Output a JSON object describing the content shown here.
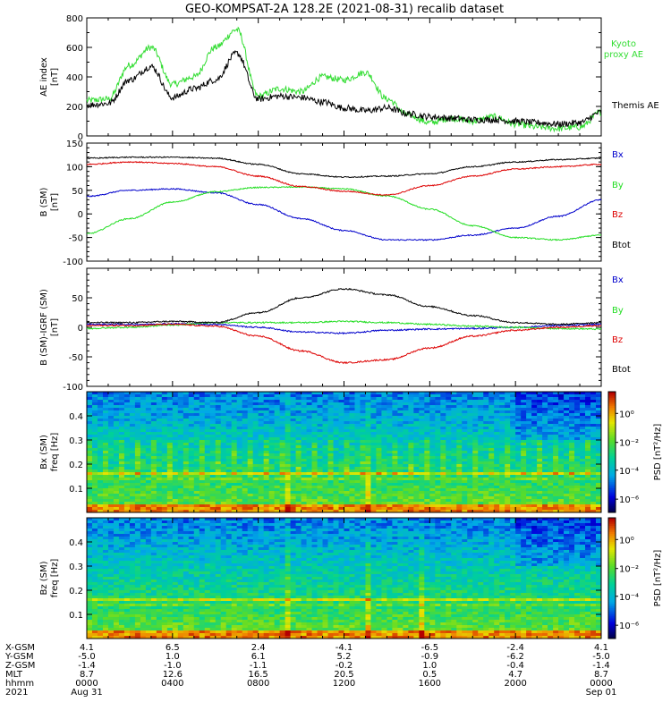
{
  "title": "GEO-KOMPSAT-2A 128.2E (2021-08-31) recalib dataset",
  "colors": {
    "black": "#000000",
    "blue": "#0000cc",
    "green": "#22dd22",
    "red": "#dd0000",
    "kyoto": "#33dd33"
  },
  "chart_data": [
    {
      "type": "line",
      "ylabel": "AE index [nT]",
      "ylim": [
        0,
        800
      ],
      "yticks": [
        "800",
        "600",
        "400",
        "200",
        "0"
      ],
      "legend": [
        {
          "name": "Kyoto proxy AE",
          "color": "#33dd33"
        },
        {
          "name": "Themis AE",
          "color": "#000000"
        }
      ],
      "x_hours": [
        0,
        1,
        2,
        3,
        4,
        5,
        6,
        7,
        8,
        9,
        10,
        11,
        12,
        13,
        14,
        15,
        16,
        17,
        18,
        19,
        20,
        21,
        22,
        23,
        24
      ],
      "series": [
        {
          "name": "Kyoto proxy AE",
          "values": [
            240,
            250,
            480,
            600,
            350,
            400,
            600,
            720,
            270,
            320,
            300,
            400,
            380,
            430,
            250,
            140,
            90,
            120,
            100,
            130,
            80,
            60,
            50,
            60,
            160
          ]
        },
        {
          "name": "Themis AE",
          "values": [
            210,
            220,
            380,
            470,
            260,
            320,
            380,
            560,
            250,
            270,
            260,
            230,
            190,
            170,
            190,
            150,
            130,
            120,
            110,
            110,
            100,
            90,
            80,
            90,
            160
          ]
        }
      ]
    },
    {
      "type": "line",
      "ylabel": "B (SM) [nT]",
      "ylim": [
        -100,
        150
      ],
      "yticks": [
        "150",
        "100",
        "50",
        "0",
        "-50",
        "-100"
      ],
      "legend": [
        {
          "name": "Bx",
          "color": "#0000cc"
        },
        {
          "name": "By",
          "color": "#22dd22"
        },
        {
          "name": "Bz",
          "color": "#dd0000"
        },
        {
          "name": "Btot",
          "color": "#000000"
        }
      ],
      "x_hours": [
        0,
        2,
        4,
        6,
        8,
        10,
        12,
        14,
        16,
        18,
        20,
        22,
        24
      ],
      "series": [
        {
          "name": "Bx",
          "values": [
            37,
            50,
            53,
            45,
            20,
            -10,
            -35,
            -55,
            -55,
            -45,
            -30,
            -5,
            30
          ]
        },
        {
          "name": "By",
          "values": [
            -42,
            -10,
            25,
            47,
            56,
            57,
            53,
            38,
            10,
            -25,
            -50,
            -55,
            -45
          ]
        },
        {
          "name": "Bz",
          "values": [
            105,
            110,
            107,
            100,
            80,
            58,
            48,
            40,
            60,
            80,
            95,
            100,
            105
          ]
        },
        {
          "name": "Btot",
          "values": [
            118,
            120,
            120,
            118,
            105,
            85,
            78,
            80,
            85,
            100,
            110,
            115,
            118
          ]
        }
      ]
    },
    {
      "type": "line",
      "ylabel": "B (SM)-IGRF (SM) [nT]",
      "ylim": [
        -100,
        100
      ],
      "yticks": [
        "50",
        "0",
        "-50",
        "-100"
      ],
      "legend": [
        {
          "name": "Bx",
          "color": "#0000cc"
        },
        {
          "name": "By",
          "color": "#22dd22"
        },
        {
          "name": "Bz",
          "color": "#dd0000"
        },
        {
          "name": "Btot",
          "color": "#000000"
        }
      ],
      "x_hours": [
        0,
        2,
        4,
        6,
        8,
        10,
        12,
        14,
        16,
        18,
        20,
        22,
        24
      ],
      "series": [
        {
          "name": "Bx",
          "values": [
            5,
            5,
            6,
            5,
            0,
            -8,
            -10,
            -5,
            -3,
            -2,
            0,
            3,
            5
          ]
        },
        {
          "name": "By",
          "values": [
            -2,
            0,
            4,
            8,
            8,
            8,
            10,
            8,
            5,
            2,
            0,
            -2,
            -3
          ]
        },
        {
          "name": "Bz",
          "values": [
            3,
            3,
            5,
            2,
            -15,
            -40,
            -60,
            -55,
            -35,
            -15,
            -5,
            0,
            3
          ]
        },
        {
          "name": "Btot",
          "values": [
            8,
            8,
            10,
            8,
            25,
            50,
            65,
            55,
            35,
            20,
            8,
            5,
            8
          ]
        }
      ]
    },
    {
      "type": "heatmap",
      "ylabel": "Bx (SM) freq [Hz]",
      "ylim": [
        0,
        0.5
      ],
      "yticks": [
        "0.4",
        "0.3",
        "0.2",
        "0.1"
      ],
      "colorbar_label": "PSD [nT²/Hz]",
      "colorbar_ticks": [
        "10⁰",
        "10⁻²",
        "10⁻⁴",
        "10⁻⁶"
      ]
    },
    {
      "type": "heatmap",
      "ylabel": "Bz (SM) freq [Hz]",
      "ylim": [
        0,
        0.5
      ],
      "yticks": [
        "0.4",
        "0.3",
        "0.2",
        "0.1"
      ],
      "colorbar_label": "PSD [nT²/Hz]",
      "colorbar_ticks": [
        "10⁰",
        "10⁻²",
        "10⁻⁴",
        "10⁻⁶"
      ]
    }
  ],
  "ephemeris": {
    "labels": [
      "X-GSM",
      "Y-GSM",
      "Z-GSM",
      "MLT",
      "hhmm",
      "2021"
    ],
    "columns": [
      [
        "4.1",
        "-5.0",
        "-1.4",
        "8.7",
        "0000",
        "Aug 31"
      ],
      [
        "6.5",
        "1.0",
        "-1.0",
        "12.6",
        "0400",
        ""
      ],
      [
        "2.4",
        "6.1",
        "-1.1",
        "16.5",
        "0800",
        ""
      ],
      [
        "-4.1",
        "5.2",
        "-0.2",
        "20.5",
        "1200",
        ""
      ],
      [
        "-6.5",
        "-0.9",
        "1.0",
        "0.5",
        "1600",
        ""
      ],
      [
        "-2.4",
        "-6.2",
        "-0.4",
        "4.7",
        "2000",
        ""
      ],
      [
        "4.1",
        "-5.0",
        "-1.4",
        "8.7",
        "0000",
        "Sep 01"
      ]
    ]
  }
}
